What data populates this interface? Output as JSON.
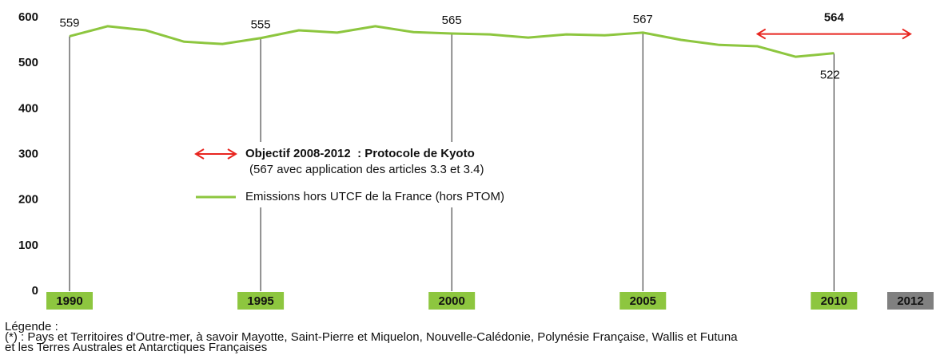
{
  "chart_data": {
    "type": "line",
    "x": [
      1990,
      1991,
      1992,
      1993,
      1994,
      1995,
      1996,
      1997,
      1998,
      1999,
      2000,
      2001,
      2002,
      2003,
      2004,
      2005,
      2006,
      2007,
      2008,
      2009,
      2010
    ],
    "series": [
      {
        "name": "Emissions hors UTCF de la France (hors PTOM)",
        "color": "#8dc63f",
        "values": [
          559,
          581,
          572,
          547,
          542,
          555,
          572,
          567,
          581,
          568,
          565,
          563,
          556,
          563,
          561,
          567,
          551,
          540,
          537,
          514,
          522
        ],
        "value_labels": [
          "559",
          null,
          null,
          null,
          null,
          "555",
          null,
          null,
          null,
          null,
          "565",
          null,
          null,
          null,
          null,
          "567",
          null,
          null,
          null,
          null,
          "522"
        ]
      }
    ],
    "xlim": [
      1990,
      2012
    ],
    "xticks": [
      1990,
      1995,
      2000,
      2005,
      2010,
      2012
    ],
    "xtick_colors": [
      "#8dc63f",
      "#8dc63f",
      "#8dc63f",
      "#8dc63f",
      "#8dc63f",
      "#808080"
    ],
    "ylim": [
      0,
      600
    ],
    "yticks": [
      0,
      100,
      200,
      300,
      400,
      500,
      600
    ],
    "target": {
      "name": "Objectif 2008-2012  : Protocole de Kyoto",
      "note": "(567 avec application des articles 3.3 et 3.4)",
      "start": 2008,
      "end": 2012,
      "value": 564,
      "label": "564",
      "color": "#e8251f"
    },
    "notes": [
      "Légende :",
      "(*) : Pays et Territoires d'Outre-mer, à savoir Mayotte, Saint-Pierre et Miquelon, Nouvelle-Calédonie, Polynésie Française, Wallis et Futuna",
      "et les Terres Australes et Antarctiques Françaises"
    ]
  }
}
